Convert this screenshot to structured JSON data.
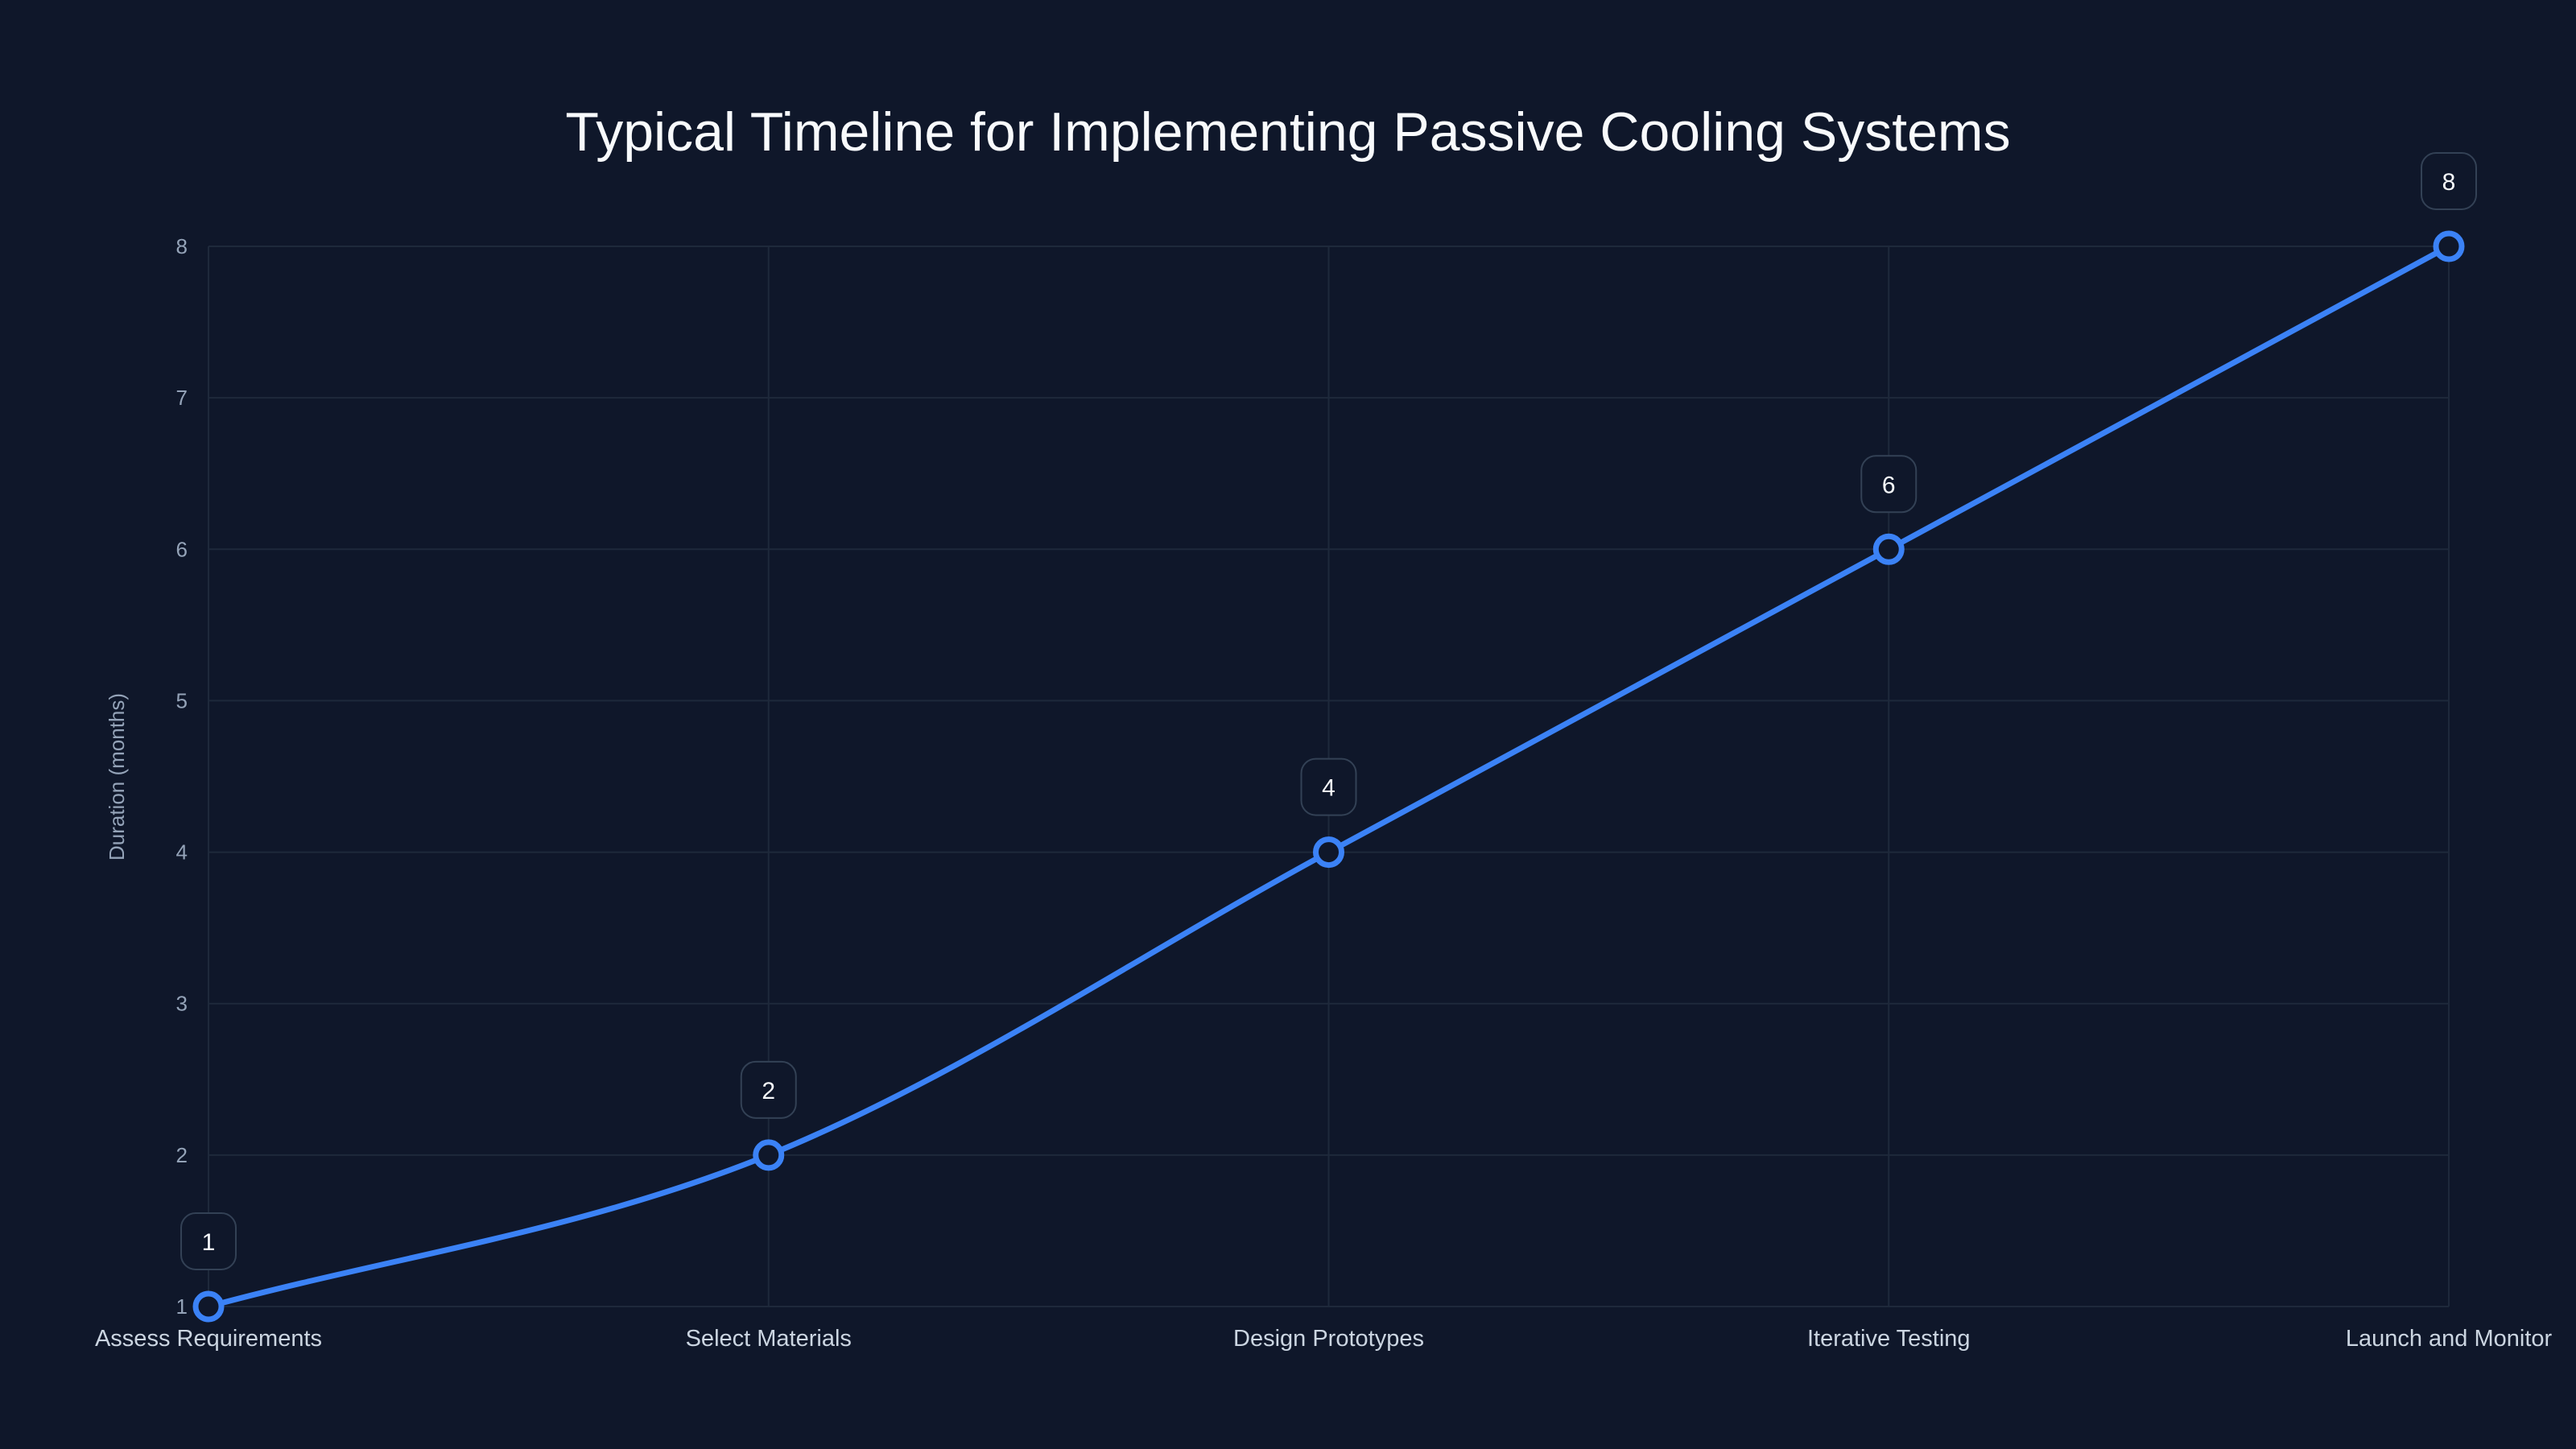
{
  "chart_data": {
    "type": "line",
    "title": "Typical Timeline for Implementing Passive Cooling Systems",
    "xlabel": "",
    "ylabel": "Duration (months)",
    "categories": [
      "Assess Requirements",
      "Select Materials",
      "Design Prototypes",
      "Iterative Testing",
      "Launch and Monitor"
    ],
    "series": [
      {
        "name": "Duration (months)",
        "values": [
          1,
          2,
          4,
          6,
          8
        ]
      }
    ],
    "ylim": [
      1,
      8
    ],
    "yticks": [
      1,
      2,
      3,
      4,
      5,
      6,
      7,
      8
    ],
    "grid": true,
    "data_labels": true,
    "colors": {
      "background": "#0f172a",
      "line": "#3b82f6",
      "grid": "#1e293b"
    }
  }
}
